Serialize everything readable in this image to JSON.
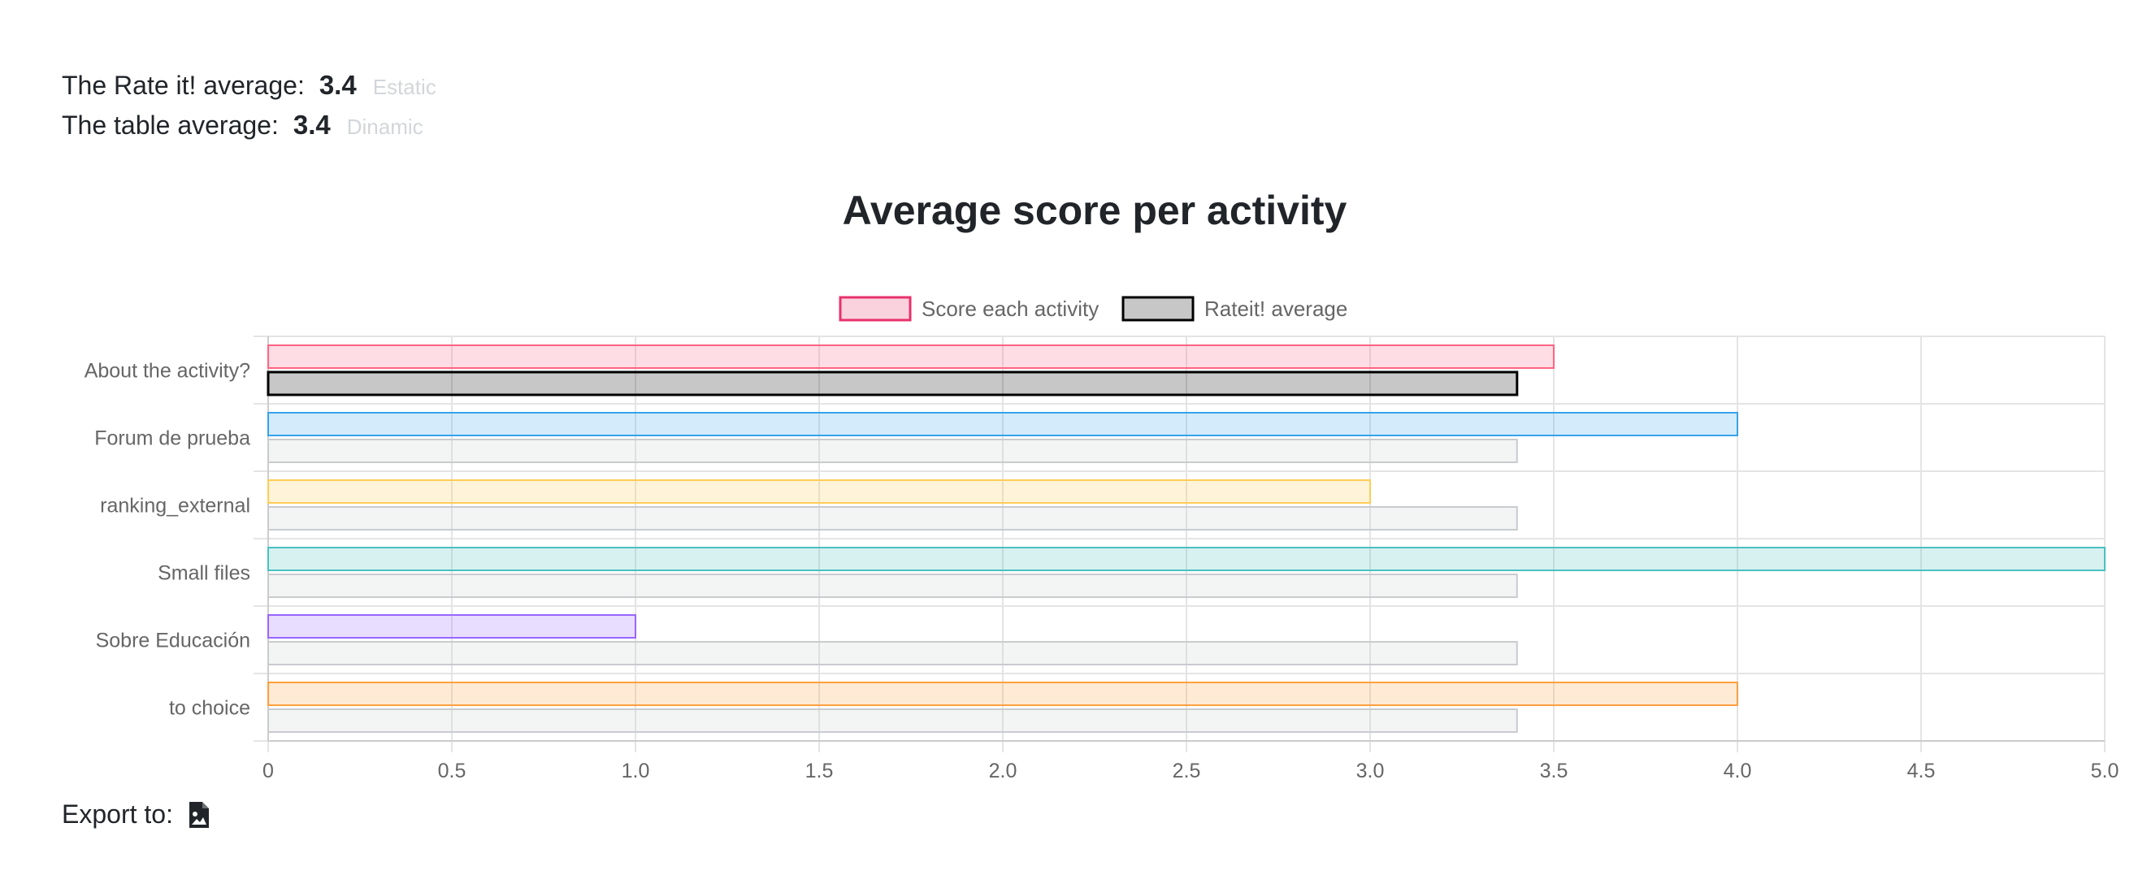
{
  "stats": {
    "rateit_label": "The Rate it! average:",
    "rateit_value": "3.4",
    "rateit_tag": "Estatic",
    "table_label": "The table average:",
    "table_value": "3.4",
    "table_tag": "Dinamic"
  },
  "export": {
    "label": "Export to:",
    "icon": "file-image-icon"
  },
  "chart_data": {
    "type": "bar",
    "orientation": "horizontal",
    "title": "Average score per activity",
    "categories": [
      "About the activity?",
      "Forum de prueba",
      "ranking_external",
      "Small files",
      "Sobre Educación",
      "to choice"
    ],
    "series": [
      {
        "name": "Score each activity",
        "values": [
          3.5,
          4.0,
          3.0,
          5.0,
          1.0,
          4.0
        ],
        "colors": [
          "#ff6384",
          "#36a2eb",
          "#ffcd56",
          "#4bc0c0",
          "#9966ff",
          "#ff9f40"
        ]
      },
      {
        "name": "Rateit! average",
        "values": [
          3.4,
          3.4,
          3.4,
          3.4,
          3.4,
          3.4
        ],
        "colors": [
          "#000000",
          "#c9cbcf",
          "#c9cbcf",
          "#c9cbcf",
          "#c9cbcf",
          "#c9cbcf"
        ]
      }
    ],
    "legend_colors": [
      "#e8316b",
      "#000000"
    ],
    "xlim": [
      0,
      5.0
    ],
    "xticks": [
      "0",
      "0.5",
      "1.0",
      "1.5",
      "2.0",
      "2.5",
      "3.0",
      "3.5",
      "4.0",
      "4.5",
      "5.0"
    ],
    "grid": true,
    "legend_position": "top"
  }
}
